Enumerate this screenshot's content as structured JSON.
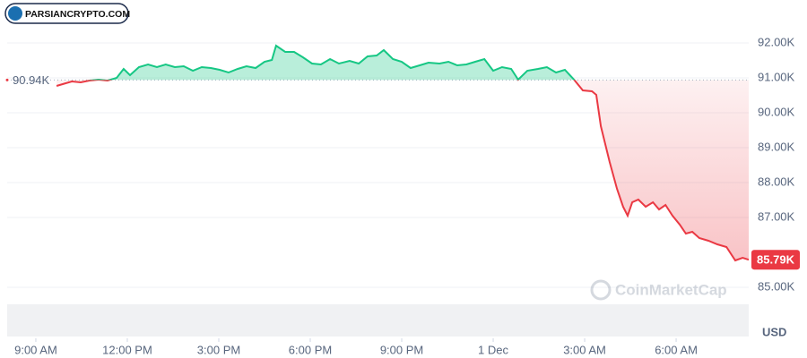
{
  "chart_data": {
    "type": "line",
    "brand": "PARSIANCRYPTO.COM",
    "watermark": "CoinMarketCap",
    "currency": "USD",
    "baseline": {
      "value": 90940,
      "label": "90.94K"
    },
    "current_price": {
      "value": 85790,
      "label": "85.79K"
    },
    "up_color": "#16c784",
    "down_color": "#ea3943",
    "grid": true,
    "xlim": [
      -0.94,
      23.38
    ],
    "xticks": [
      {
        "value": 0,
        "label": "9:00 AM"
      },
      {
        "value": 3,
        "label": "12:00 PM"
      },
      {
        "value": 6,
        "label": "3:00 PM"
      },
      {
        "value": 9,
        "label": "6:00 PM"
      },
      {
        "value": 12,
        "label": "9:00 PM"
      },
      {
        "value": 15,
        "label": "1 Dec"
      },
      {
        "value": 18,
        "label": "3:00 AM"
      },
      {
        "value": 21,
        "label": "6:00 AM"
      }
    ],
    "ylim": [
      84000,
      93000
    ],
    "yticks": [
      {
        "value": 85000,
        "label": "85.00K"
      },
      {
        "value": 87000,
        "label": "87.00K"
      },
      {
        "value": 88000,
        "label": "88.00K"
      },
      {
        "value": 89000,
        "label": "89.00K"
      },
      {
        "value": 90000,
        "label": "90.00K"
      },
      {
        "value": 91000,
        "label": "91.00K"
      },
      {
        "value": 92000,
        "label": "92.00K"
      }
    ],
    "x": [
      0.68,
      0.88,
      1.18,
      1.47,
      1.76,
      2.06,
      2.35,
      2.65,
      2.88,
      3.09,
      3.38,
      3.68,
      3.97,
      4.26,
      4.56,
      4.85,
      5.15,
      5.44,
      5.74,
      6.03,
      6.32,
      6.62,
      6.91,
      7.21,
      7.5,
      7.74,
      7.88,
      8.18,
      8.47,
      8.76,
      9.06,
      9.35,
      9.65,
      9.94,
      10.29,
      10.59,
      10.88,
      11.18,
      11.41,
      11.71,
      12,
      12.29,
      12.59,
      12.88,
      13.24,
      13.53,
      13.82,
      14.12,
      14.41,
      14.71,
      15,
      15.29,
      15.59,
      15.82,
      16.12,
      16.47,
      16.76,
      17.06,
      17.35,
      17.65,
      17.94,
      18.24,
      18.38,
      18.53,
      18.82,
      19.06,
      19.26,
      19.41,
      19.56,
      19.76,
      20,
      20.24,
      20.44,
      20.65,
      20.88,
      21.12,
      21.32,
      21.53,
      21.76,
      22.06,
      22.35,
      22.65,
      22.94,
      23.18,
      23.38
    ],
    "series": [
      {
        "values": [
          90769,
          90821,
          90897,
          90872,
          90923,
          90949,
          90923,
          91000,
          91256,
          91077,
          91308,
          91385,
          91308,
          91385,
          91308,
          91333,
          91205,
          91308,
          91282,
          91231,
          91154,
          91256,
          91333,
          91282,
          91462,
          91513,
          91923,
          91744,
          91744,
          91590,
          91410,
          91385,
          91538,
          91410,
          91487,
          91410,
          91615,
          91641,
          91795,
          91538,
          91462,
          91282,
          91359,
          91436,
          91410,
          91462,
          91359,
          91385,
          91462,
          91538,
          91205,
          91308,
          91256,
          90949,
          91205,
          91256,
          91308,
          91154,
          91231,
          90949,
          90641,
          90615,
          90513,
          89615,
          88590,
          87821,
          87308,
          87051,
          87436,
          87513,
          87308,
          87436,
          87231,
          87359,
          87051,
          86795,
          86538,
          86590,
          86410,
          86333,
          86231,
          86154,
          85769,
          85846,
          85790
        ]
      }
    ]
  }
}
